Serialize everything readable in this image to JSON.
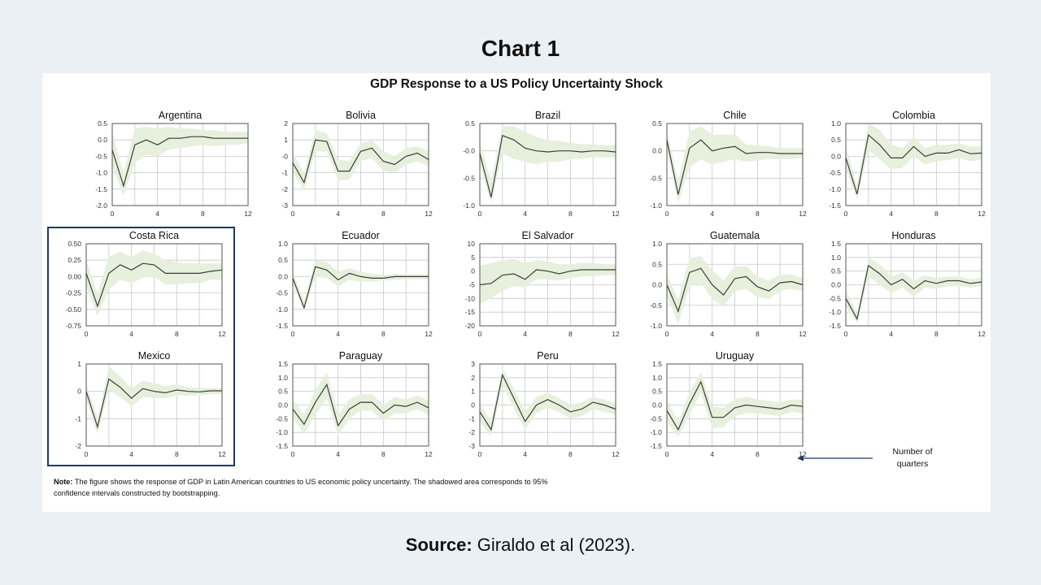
{
  "slide_title": "Chart 1",
  "figure_title": "GDP Response to a US Policy Uncertainty Shock",
  "note_label": "Note:",
  "note_text": " The figure shows the response of GDP in Latin American countries to US economic policy uncertainty. The shadowed area corresponds to 95% confidence intervals constructed by bootstrapping.",
  "legend_text": "Number of quarters",
  "source_label": "Source:",
  "source_text": " Giraldo et al (2023).",
  "colors": {
    "band": "#e6f0dc",
    "line": "#3c3c3c",
    "grid": "#c8c8c8",
    "frame": "#555555",
    "highlight": "#1f3864"
  },
  "chart_data": [
    {
      "type": "line",
      "title": "Argentina",
      "x": [
        0,
        1,
        2,
        3,
        4,
        5,
        6,
        7,
        8,
        9,
        10,
        11,
        12
      ],
      "ylim": [
        -2.0,
        0.5
      ],
      "yticks": [
        "0.5",
        "0.0",
        "-0.5",
        "-1.0",
        "-1.5",
        "-2.0"
      ],
      "xticks": [
        "0",
        "4",
        "8",
        "12"
      ],
      "values": [
        -0.3,
        -1.4,
        -0.15,
        0.0,
        -0.15,
        0.05,
        0.05,
        0.1,
        0.1,
        0.05,
        0.05,
        0.05,
        0.05
      ],
      "lower": [
        -0.8,
        -1.7,
        -0.7,
        -0.45,
        -0.5,
        -0.3,
        -0.25,
        -0.2,
        -0.15,
        -0.2,
        -0.15,
        -0.15,
        -0.1
      ],
      "upper": [
        0.2,
        -1.0,
        0.35,
        0.4,
        0.35,
        0.4,
        0.35,
        0.35,
        0.3,
        0.3,
        0.25,
        0.25,
        0.25
      ]
    },
    {
      "type": "line",
      "title": "Bolivia",
      "x": [
        0,
        1,
        2,
        3,
        4,
        5,
        6,
        7,
        8,
        9,
        10,
        11,
        12
      ],
      "ylim": [
        -3,
        2
      ],
      "yticks": [
        "2",
        "1",
        "-0",
        "-1",
        "-2",
        "-3"
      ],
      "xticks": [
        "0",
        "4",
        "8",
        "12"
      ],
      "values": [
        -0.4,
        -1.6,
        1.0,
        0.9,
        -0.9,
        -0.9,
        0.3,
        0.5,
        -0.3,
        -0.5,
        0.0,
        0.2,
        -0.2
      ],
      "lower": [
        -1.0,
        -2.1,
        0.3,
        0.3,
        -1.5,
        -1.4,
        -0.3,
        -0.1,
        -0.9,
        -1.0,
        -0.5,
        -0.3,
        -0.6
      ],
      "upper": [
        0.2,
        -1.0,
        1.6,
        1.4,
        -0.2,
        -0.3,
        0.8,
        1.0,
        0.3,
        0.0,
        0.5,
        0.6,
        0.3
      ]
    },
    {
      "type": "line",
      "title": "Brazil",
      "x": [
        0,
        1,
        2,
        3,
        4,
        5,
        6,
        7,
        8,
        9,
        10,
        11,
        12
      ],
      "ylim": [
        -1.0,
        0.5
      ],
      "yticks": [
        "0.5",
        "-0.0",
        "-0.5",
        "-1.0"
      ],
      "xticks": [
        "0",
        "4",
        "8",
        "12"
      ],
      "values": [
        -0.05,
        -0.85,
        0.28,
        0.2,
        0.05,
        0.0,
        -0.02,
        0.0,
        0.0,
        -0.02,
        0.0,
        0.0,
        -0.02
      ],
      "lower": [
        -0.25,
        -0.95,
        -0.05,
        -0.15,
        -0.2,
        -0.25,
        -0.2,
        -0.2,
        -0.15,
        -0.15,
        -0.12,
        -0.12,
        -0.12
      ],
      "upper": [
        0.15,
        -0.55,
        0.45,
        0.45,
        0.35,
        0.25,
        0.2,
        0.18,
        0.15,
        0.12,
        0.12,
        0.1,
        0.1
      ]
    },
    {
      "type": "line",
      "title": "Chile",
      "x": [
        0,
        1,
        2,
        3,
        4,
        5,
        6,
        7,
        8,
        9,
        10,
        11,
        12
      ],
      "ylim": [
        -1.0,
        0.5
      ],
      "yticks": [
        "0.5",
        "0.0",
        "-0.5",
        "-1.0"
      ],
      "xticks": [
        "0",
        "4",
        "8",
        "12"
      ],
      "values": [
        0.2,
        -0.8,
        0.05,
        0.2,
        0.0,
        0.05,
        0.08,
        -0.05,
        -0.03,
        -0.03,
        -0.05,
        -0.05,
        -0.05
      ],
      "lower": [
        0.0,
        -0.95,
        -0.3,
        -0.15,
        -0.25,
        -0.2,
        -0.15,
        -0.2,
        -0.18,
        -0.15,
        -0.15,
        -0.15,
        -0.13
      ],
      "upper": [
        0.35,
        -0.55,
        0.35,
        0.45,
        0.3,
        0.3,
        0.3,
        0.12,
        0.1,
        0.08,
        0.05,
        0.05,
        0.05
      ]
    },
    {
      "type": "line",
      "title": "Colombia",
      "x": [
        0,
        1,
        2,
        3,
        4,
        5,
        6,
        7,
        8,
        9,
        10,
        11,
        12
      ],
      "ylim": [
        -1.5,
        1.0
      ],
      "yticks": [
        "1.0",
        "0.5",
        "0.0",
        "-0.5",
        "-1.0",
        "-1.5"
      ],
      "xticks": [
        "0",
        "4",
        "8",
        "12"
      ],
      "values": [
        -0.05,
        -1.15,
        0.65,
        0.35,
        -0.05,
        -0.05,
        0.3,
        0.0,
        0.1,
        0.1,
        0.2,
        0.08,
        0.1
      ],
      "lower": [
        -0.4,
        -1.3,
        0.2,
        -0.1,
        -0.4,
        -0.35,
        0.0,
        -0.25,
        -0.15,
        -0.12,
        -0.05,
        -0.15,
        -0.1
      ],
      "upper": [
        0.3,
        -0.9,
        1.0,
        0.8,
        0.35,
        0.25,
        0.6,
        0.25,
        0.35,
        0.35,
        0.4,
        0.3,
        0.3
      ]
    },
    {
      "type": "line",
      "title": "Costa Rica",
      "x": [
        0,
        1,
        2,
        3,
        4,
        5,
        6,
        7,
        8,
        9,
        10,
        11,
        12
      ],
      "ylim": [
        -0.75,
        0.5
      ],
      "yticks": [
        "0.50",
        "0.25",
        "0.00",
        "-0.25",
        "-0.50",
        "-0.75"
      ],
      "xticks": [
        "0",
        "4",
        "8",
        "12"
      ],
      "values": [
        0.05,
        -0.45,
        0.05,
        0.18,
        0.1,
        0.2,
        0.18,
        0.05,
        0.05,
        0.05,
        0.05,
        0.08,
        0.1
      ],
      "lower": [
        -0.15,
        -0.6,
        -0.2,
        -0.05,
        -0.1,
        -0.02,
        0.0,
        -0.12,
        -0.12,
        -0.1,
        -0.1,
        -0.05,
        -0.05
      ],
      "upper": [
        0.25,
        -0.25,
        0.3,
        0.38,
        0.3,
        0.4,
        0.35,
        0.25,
        0.22,
        0.2,
        0.2,
        0.2,
        0.2
      ]
    },
    {
      "type": "line",
      "title": "Ecuador",
      "x": [
        0,
        1,
        2,
        3,
        4,
        5,
        6,
        7,
        8,
        9,
        10,
        11,
        12
      ],
      "ylim": [
        -1.5,
        1.0
      ],
      "yticks": [
        "1.0",
        "0.5",
        "0.0",
        "-0.5",
        "-1.0",
        "-1.5"
      ],
      "xticks": [
        "0",
        "4",
        "8",
        "12"
      ],
      "values": [
        -0.05,
        -0.95,
        0.3,
        0.2,
        -0.1,
        0.1,
        0.0,
        -0.05,
        -0.05,
        0.0,
        0.0,
        0.0,
        0.0
      ],
      "lower": [
        -0.25,
        -1.05,
        0.0,
        -0.05,
        -0.3,
        -0.1,
        -0.15,
        -0.15,
        -0.12,
        -0.1,
        -0.08,
        -0.08,
        -0.08
      ],
      "upper": [
        0.15,
        -0.75,
        0.5,
        0.45,
        0.15,
        0.25,
        0.15,
        0.08,
        0.05,
        0.07,
        0.07,
        0.07,
        0.07
      ]
    },
    {
      "type": "line",
      "title": "El Salvador",
      "x": [
        0,
        1,
        2,
        3,
        4,
        5,
        6,
        7,
        8,
        9,
        10,
        11,
        12
      ],
      "ylim": [
        -20,
        10
      ],
      "yticks": [
        "10",
        "5",
        "0",
        "-5",
        "-10",
        "-15",
        "-20"
      ],
      "xticks": [
        "0",
        "4",
        "8",
        "12"
      ],
      "values": [
        -5,
        -4.5,
        -1.5,
        -1,
        -3,
        0.5,
        0,
        -1,
        0,
        0.5,
        0.5,
        0.5,
        0.5
      ],
      "lower": [
        -12,
        -10,
        -7,
        -5.5,
        -6,
        -3,
        -3,
        -3.5,
        -2.5,
        -2,
        -1.8,
        -1.5,
        -1.5
      ],
      "upper": [
        2,
        3,
        4,
        4.5,
        3,
        4,
        3.5,
        2.5,
        2.5,
        3,
        3,
        2.5,
        2.5
      ]
    },
    {
      "type": "line",
      "title": "Guatemala",
      "x": [
        0,
        1,
        2,
        3,
        4,
        5,
        6,
        7,
        8,
        9,
        10,
        11,
        12
      ],
      "ylim": [
        -1.0,
        1.0
      ],
      "yticks": [
        "1.0",
        "0.5",
        "0.0",
        "-0.5",
        "-1.0"
      ],
      "xticks": [
        "0",
        "4",
        "8",
        "12"
      ],
      "values": [
        0.0,
        -0.65,
        0.3,
        0.4,
        0.0,
        -0.25,
        0.15,
        0.2,
        -0.05,
        -0.15,
        0.05,
        0.08,
        0.0
      ],
      "lower": [
        -0.25,
        -0.95,
        -0.05,
        0.05,
        -0.35,
        -0.55,
        -0.15,
        -0.1,
        -0.3,
        -0.35,
        -0.15,
        -0.1,
        -0.15
      ],
      "upper": [
        0.25,
        -0.35,
        0.65,
        0.7,
        0.35,
        0.1,
        0.45,
        0.45,
        0.2,
        0.1,
        0.25,
        0.25,
        0.15
      ]
    },
    {
      "type": "line",
      "title": "Honduras",
      "x": [
        0,
        1,
        2,
        3,
        4,
        5,
        6,
        7,
        8,
        9,
        10,
        11,
        12
      ],
      "ylim": [
        -1.5,
        1.5
      ],
      "yticks": [
        "1.5",
        "1.0",
        "0.5",
        "0.0",
        "-0.5",
        "-1.0",
        "-1.5"
      ],
      "xticks": [
        "0",
        "4",
        "8",
        "12"
      ],
      "values": [
        -0.5,
        -1.25,
        0.7,
        0.4,
        0.0,
        0.2,
        -0.15,
        0.15,
        0.05,
        0.15,
        0.15,
        0.05,
        0.1
      ],
      "lower": [
        -0.8,
        -1.4,
        0.3,
        0.0,
        -0.3,
        -0.1,
        -0.45,
        -0.1,
        -0.15,
        -0.05,
        -0.05,
        -0.1,
        -0.05
      ],
      "upper": [
        -0.2,
        -1.05,
        1.0,
        0.75,
        0.3,
        0.45,
        0.15,
        0.35,
        0.25,
        0.3,
        0.3,
        0.2,
        0.25
      ]
    },
    {
      "type": "line",
      "title": "Mexico",
      "x": [
        0,
        1,
        2,
        3,
        4,
        5,
        6,
        7,
        8,
        9,
        10,
        11,
        12
      ],
      "ylim": [
        -2,
        1
      ],
      "yticks": [
        "1",
        "0",
        "-1",
        "-2"
      ],
      "xticks": [
        "0",
        "4",
        "8",
        "12"
      ],
      "values": [
        0.0,
        -1.3,
        0.45,
        0.15,
        -0.25,
        0.1,
        0.0,
        -0.05,
        0.05,
        0.0,
        -0.02,
        0.02,
        0.02
      ],
      "lower": [
        -0.3,
        -1.55,
        0.05,
        -0.2,
        -0.55,
        -0.2,
        -0.25,
        -0.25,
        -0.15,
        -0.15,
        -0.15,
        -0.1,
        -0.1
      ],
      "upper": [
        0.3,
        -1.0,
        0.9,
        0.55,
        0.1,
        0.4,
        0.3,
        0.2,
        0.25,
        0.15,
        0.12,
        0.12,
        0.12
      ]
    },
    {
      "type": "line",
      "title": "Paraguay",
      "x": [
        0,
        1,
        2,
        3,
        4,
        5,
        6,
        7,
        8,
        9,
        10,
        11,
        12
      ],
      "ylim": [
        -1.5,
        1.5
      ],
      "yticks": [
        "1.5",
        "1.0",
        "0.5",
        "0.0",
        "-0.5",
        "-1.0",
        "-1.5"
      ],
      "xticks": [
        "0",
        "4",
        "8",
        "12"
      ],
      "values": [
        -0.15,
        -0.7,
        0.1,
        0.75,
        -0.75,
        -0.15,
        0.1,
        0.1,
        -0.3,
        0.0,
        -0.05,
        0.1,
        -0.1
      ],
      "lower": [
        -0.5,
        -1.05,
        -0.35,
        0.25,
        -1.1,
        -0.5,
        -0.2,
        -0.2,
        -0.6,
        -0.3,
        -0.3,
        -0.15,
        -0.35
      ],
      "upper": [
        0.2,
        -0.35,
        0.55,
        1.2,
        -0.35,
        0.2,
        0.4,
        0.4,
        0.0,
        0.3,
        0.2,
        0.35,
        0.15
      ]
    },
    {
      "type": "line",
      "title": "Peru",
      "x": [
        0,
        1,
        2,
        3,
        4,
        5,
        6,
        7,
        8,
        9,
        10,
        11,
        12
      ],
      "ylim": [
        -3,
        3
      ],
      "yticks": [
        "3",
        "2",
        "1",
        "0",
        "-1",
        "-2",
        "-3"
      ],
      "xticks": [
        "0",
        "4",
        "8",
        "12"
      ],
      "values": [
        -0.5,
        -1.8,
        2.2,
        0.5,
        -1.2,
        0.0,
        0.4,
        0.0,
        -0.5,
        -0.3,
        0.2,
        0.0,
        -0.3
      ],
      "lower": [
        -1.2,
        -2.3,
        1.5,
        -0.2,
        -1.8,
        -0.6,
        -0.2,
        -0.5,
        -1.0,
        -0.8,
        -0.3,
        -0.5,
        -0.7
      ],
      "upper": [
        0.2,
        -1.2,
        2.7,
        1.2,
        -0.5,
        0.6,
        0.9,
        0.5,
        0.0,
        0.2,
        0.6,
        0.4,
        0.1
      ]
    },
    {
      "type": "line",
      "title": "Uruguay",
      "x": [
        0,
        1,
        2,
        3,
        4,
        5,
        6,
        7,
        8,
        9,
        10,
        11,
        12
      ],
      "ylim": [
        -1.5,
        1.5
      ],
      "yticks": [
        "1.5",
        "1.0",
        "0.5",
        "0.0",
        "-0.5",
        "-1.0",
        "-1.5"
      ],
      "xticks": [
        "0",
        "4",
        "8",
        "12"
      ],
      "values": [
        -0.2,
        -0.9,
        0.05,
        0.85,
        -0.45,
        -0.45,
        -0.1,
        0.0,
        -0.05,
        -0.1,
        -0.15,
        0.0,
        -0.05
      ],
      "lower": [
        -0.6,
        -1.15,
        -0.35,
        0.45,
        -0.85,
        -0.8,
        -0.4,
        -0.3,
        -0.3,
        -0.35,
        -0.4,
        -0.25,
        -0.3
      ],
      "upper": [
        0.2,
        -0.6,
        0.45,
        1.2,
        -0.05,
        -0.1,
        0.2,
        0.3,
        0.2,
        0.15,
        0.1,
        0.2,
        0.2
      ]
    }
  ]
}
